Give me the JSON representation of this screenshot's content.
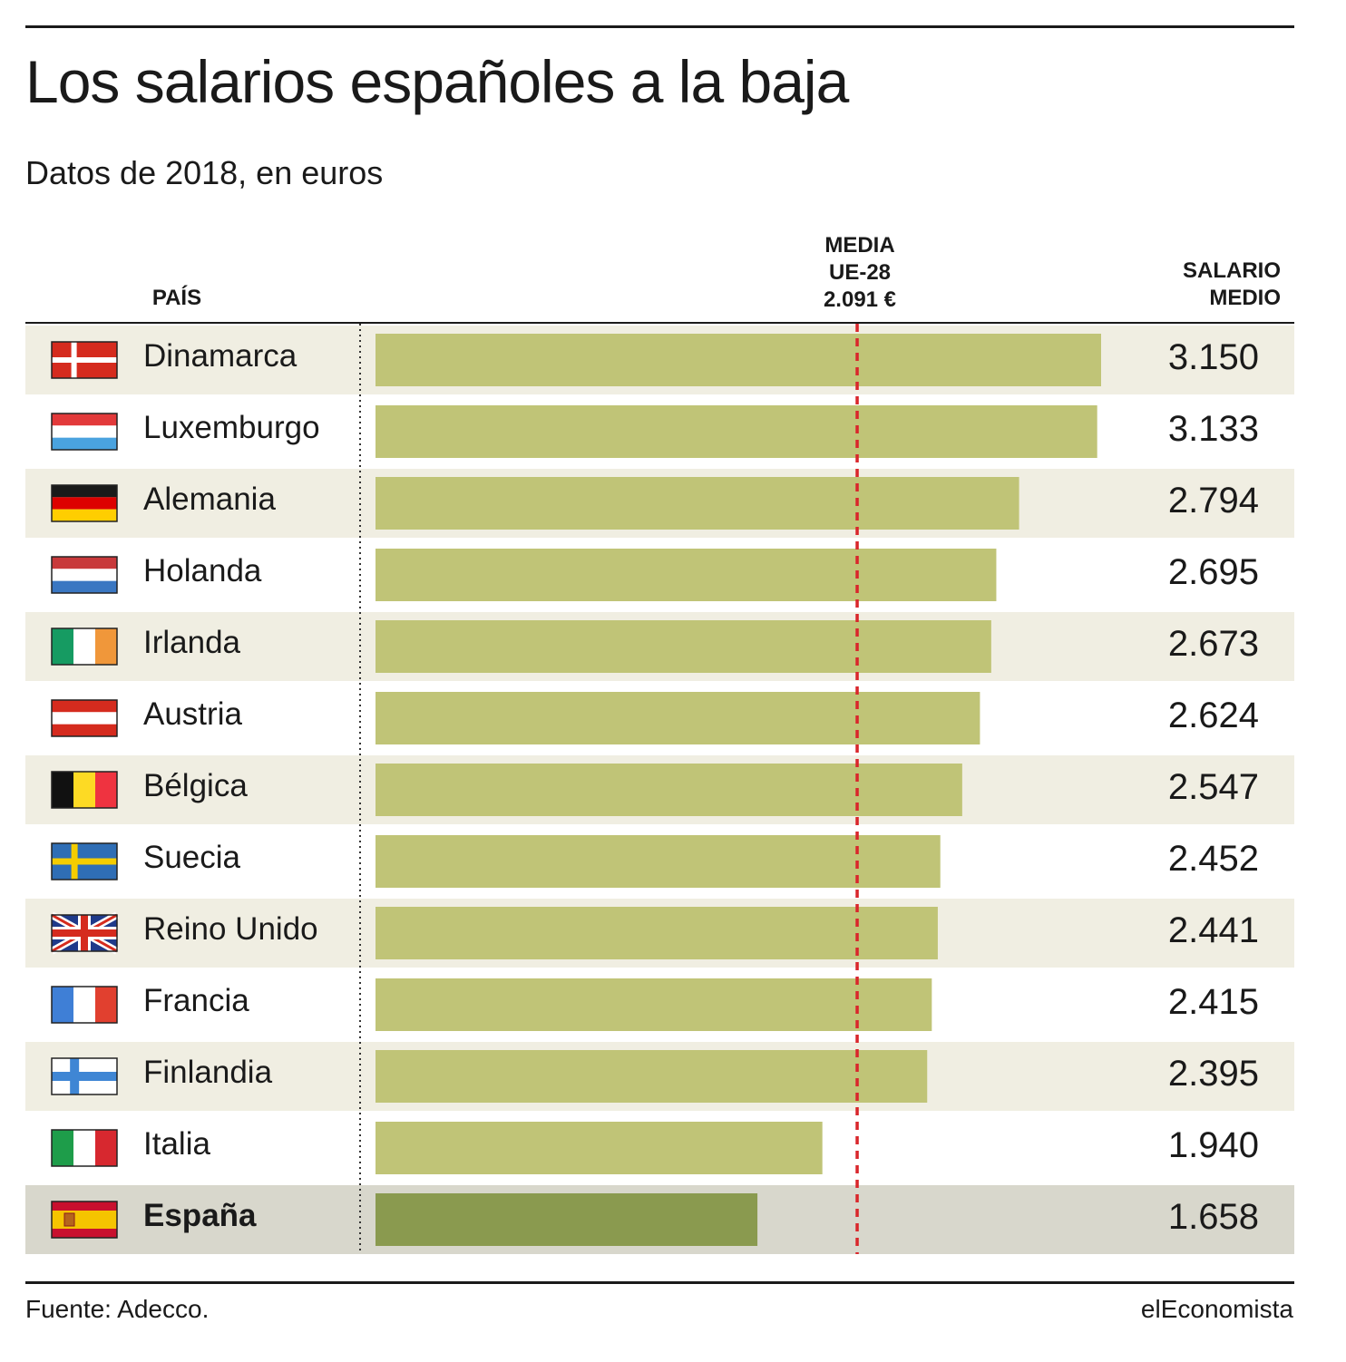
{
  "header": {
    "title": "Los salarios españoles a la baja",
    "subtitle": "Datos de 2018, en euros"
  },
  "columns": {
    "pais": "PAÍS",
    "media": [
      "MEDIA",
      "UE-28",
      "2.091 €"
    ],
    "salario": [
      "SALARIO",
      "MEDIO"
    ]
  },
  "chart_data": {
    "type": "bar",
    "orientation": "horizontal",
    "title": "Los salarios españoles a la baja",
    "subtitle": "Datos de 2018, en euros",
    "xlabel": "",
    "ylabel": "PAÍS",
    "value_label": "SALARIO MEDIO",
    "xlim": [
      0,
      3150
    ],
    "reference_line": {
      "label": "MEDIA UE-28 2.091 €",
      "value": 2091
    },
    "categories": [
      "Dinamarca",
      "Luxemburgo",
      "Alemania",
      "Holanda",
      "Irlanda",
      "Austria",
      "Bélgica",
      "Suecia",
      "Reino Unido",
      "Francia",
      "Finlandia",
      "Italia",
      "España"
    ],
    "values": [
      3150,
      3133,
      2794,
      2695,
      2673,
      2624,
      2547,
      2452,
      2441,
      2415,
      2395,
      1940,
      1658
    ],
    "value_labels": [
      "3.150",
      "3.133",
      "2.794",
      "2.695",
      "2.673",
      "2.624",
      "2.547",
      "2.452",
      "2.441",
      "2.415",
      "2.395",
      "1.940",
      "1.658"
    ],
    "flags": [
      "denmark-flag",
      "luxembourg-flag",
      "germany-flag",
      "netherlands-flag",
      "ireland-flag",
      "austria-flag",
      "belgium-flag",
      "sweden-flag",
      "uk-flag",
      "france-flag",
      "finland-flag",
      "italy-flag",
      "spain-flag"
    ],
    "highlight": "España"
  },
  "colors": {
    "bar": "#c0c477",
    "bar_highlight": "#8a9a4f",
    "row_shade": "#f0eee2",
    "row_highlight": "#d8d7cc",
    "reference_line": "#d9262b"
  },
  "footer": {
    "source": "Fuente: Adecco.",
    "brand": "elEconomista"
  }
}
